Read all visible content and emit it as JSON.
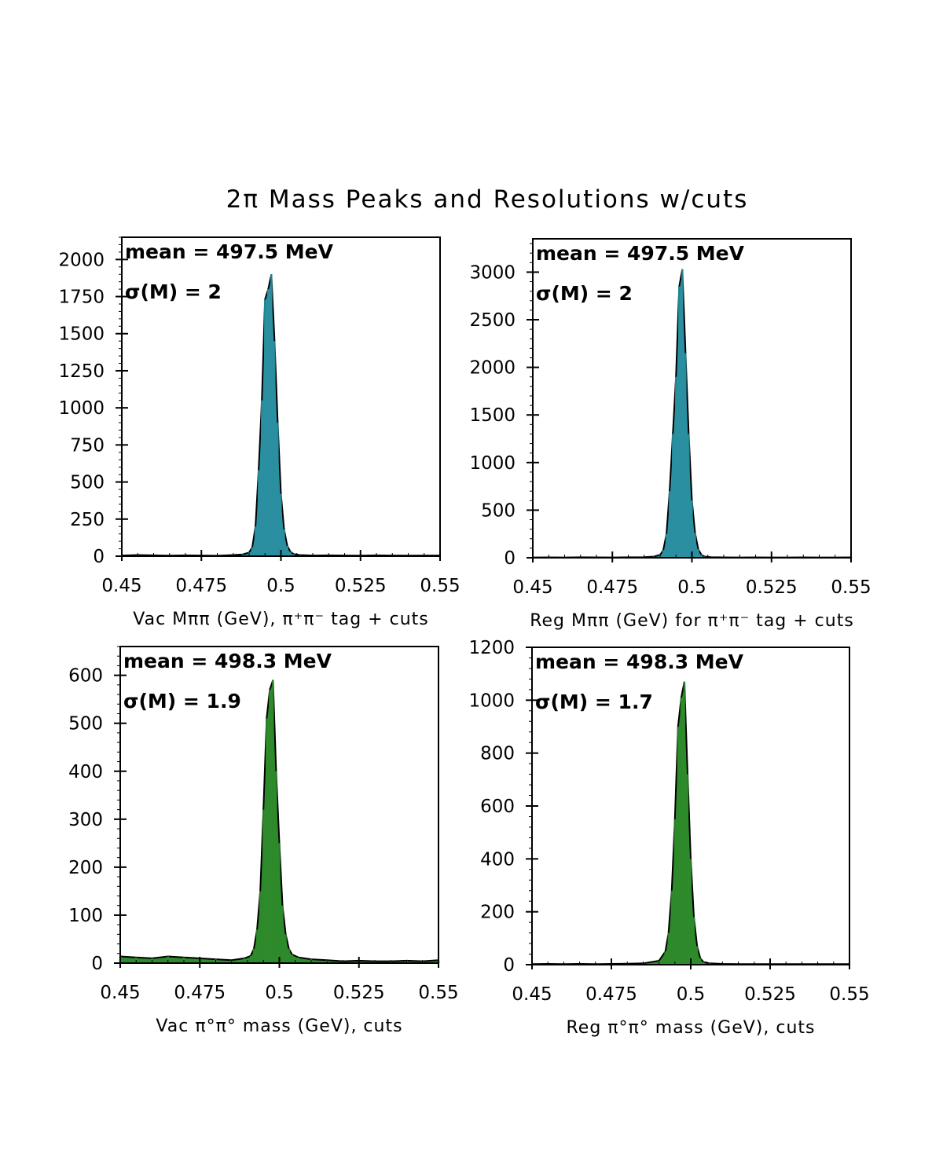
{
  "title": "2π  Mass Peaks and Resolutions w/cuts",
  "chart_data": [
    {
      "type": "bar",
      "xlabel": "Vac Mππ (GeV), π⁺π⁻ tag + cuts",
      "mean_label": "mean = 497.5 MeV",
      "sigma_label": "σ(M) = 2",
      "xlim": [
        0.45,
        0.55
      ],
      "ylim": [
        0,
        2150
      ],
      "xticks": [
        "0.45",
        "0.475",
        "0.5",
        "0.525",
        "0.55"
      ],
      "yticks": [
        "0",
        "250",
        "500",
        "750",
        "1000",
        "1250",
        "1500",
        "1750",
        "2000"
      ],
      "color": "#2a8fa0",
      "x": [
        0.45,
        0.455,
        0.46,
        0.465,
        0.47,
        0.475,
        0.48,
        0.485,
        0.488,
        0.49,
        0.491,
        0.492,
        0.493,
        0.494,
        0.495,
        0.496,
        0.497,
        0.498,
        0.499,
        0.5,
        0.501,
        0.502,
        0.503,
        0.504,
        0.506,
        0.51,
        0.515,
        0.52,
        0.525,
        0.53,
        0.535,
        0.54,
        0.545,
        0.55
      ],
      "values": [
        5,
        8,
        6,
        4,
        6,
        5,
        3,
        8,
        12,
        25,
        60,
        200,
        580,
        1050,
        1730,
        1800,
        1900,
        1450,
        900,
        420,
        180,
        70,
        30,
        14,
        8,
        5,
        6,
        5,
        4,
        6,
        5,
        4,
        5,
        5
      ]
    },
    {
      "type": "bar",
      "xlabel": "Reg Mππ (GeV) for π⁺π⁻ tag + cuts",
      "mean_label": "mean = 497.5 MeV",
      "sigma_label": "σ(M) = 2",
      "xlim": [
        0.45,
        0.55
      ],
      "ylim": [
        0,
        3350
      ],
      "xticks": [
        "0.45",
        "0.475",
        "0.5",
        "0.525",
        "0.55"
      ],
      "yticks": [
        "0",
        "500",
        "1000",
        "1500",
        "2000",
        "2500",
        "3000"
      ],
      "color": "#2a8fa0",
      "x": [
        0.45,
        0.455,
        0.46,
        0.465,
        0.47,
        0.475,
        0.48,
        0.485,
        0.488,
        0.49,
        0.491,
        0.492,
        0.493,
        0.494,
        0.495,
        0.496,
        0.497,
        0.498,
        0.499,
        0.5,
        0.501,
        0.502,
        0.503,
        0.504,
        0.506,
        0.51,
        0.515,
        0.52,
        0.525,
        0.53,
        0.535,
        0.54,
        0.545,
        0.55
      ],
      "values": [
        3,
        4,
        3,
        5,
        4,
        3,
        5,
        6,
        12,
        30,
        80,
        250,
        700,
        1300,
        1900,
        2850,
        3030,
        2150,
        1300,
        600,
        260,
        90,
        30,
        12,
        6,
        4,
        3,
        4,
        3,
        3,
        4,
        3,
        3,
        4
      ]
    },
    {
      "type": "bar",
      "xlabel": "Vac π°π° mass (GeV), cuts",
      "mean_label": "mean = 498.3 MeV",
      "sigma_label": "σ(M) = 1.9",
      "xlim": [
        0.45,
        0.55
      ],
      "ylim": [
        0,
        660
      ],
      "xticks": [
        "0.45",
        "0.475",
        "0.5",
        "0.525",
        "0.55"
      ],
      "yticks": [
        "0",
        "100",
        "200",
        "300",
        "400",
        "500",
        "600"
      ],
      "color": "#2e8a2a",
      "x": [
        0.45,
        0.455,
        0.46,
        0.465,
        0.47,
        0.475,
        0.48,
        0.485,
        0.489,
        0.491,
        0.492,
        0.493,
        0.494,
        0.495,
        0.496,
        0.497,
        0.498,
        0.499,
        0.5,
        0.501,
        0.502,
        0.503,
        0.504,
        0.506,
        0.51,
        0.515,
        0.52,
        0.525,
        0.53,
        0.535,
        0.54,
        0.545,
        0.55
      ],
      "values": [
        14,
        12,
        10,
        14,
        12,
        10,
        8,
        6,
        10,
        15,
        30,
        70,
        150,
        320,
        510,
        570,
        590,
        400,
        250,
        120,
        60,
        30,
        18,
        12,
        8,
        6,
        4,
        5,
        4,
        4,
        5,
        4,
        6
      ]
    },
    {
      "type": "bar",
      "xlabel": "Reg π°π° mass (GeV), cuts",
      "mean_label": "mean = 498.3 MeV",
      "sigma_label": "σ(M) = 1.7",
      "xlim": [
        0.45,
        0.55
      ],
      "ylim": [
        0,
        1200
      ],
      "xticks": [
        "0.45",
        "0.475",
        "0.5",
        "0.525",
        "0.55"
      ],
      "yticks": [
        "0",
        "200",
        "400",
        "600",
        "800",
        "1000",
        "1200"
      ],
      "color": "#2e8a2a",
      "x": [
        0.45,
        0.455,
        0.46,
        0.465,
        0.47,
        0.475,
        0.48,
        0.485,
        0.49,
        0.492,
        0.493,
        0.494,
        0.495,
        0.496,
        0.497,
        0.498,
        0.499,
        0.5,
        0.501,
        0.502,
        0.503,
        0.504,
        0.506,
        0.51,
        0.515,
        0.52,
        0.525,
        0.53,
        0.535,
        0.54,
        0.545,
        0.55
      ],
      "values": [
        2,
        3,
        2,
        3,
        2,
        3,
        4,
        5,
        15,
        50,
        120,
        280,
        550,
        900,
        1010,
        1070,
        720,
        400,
        180,
        70,
        25,
        10,
        5,
        3,
        2,
        2,
        2,
        2,
        2,
        2,
        2,
        2
      ]
    }
  ]
}
